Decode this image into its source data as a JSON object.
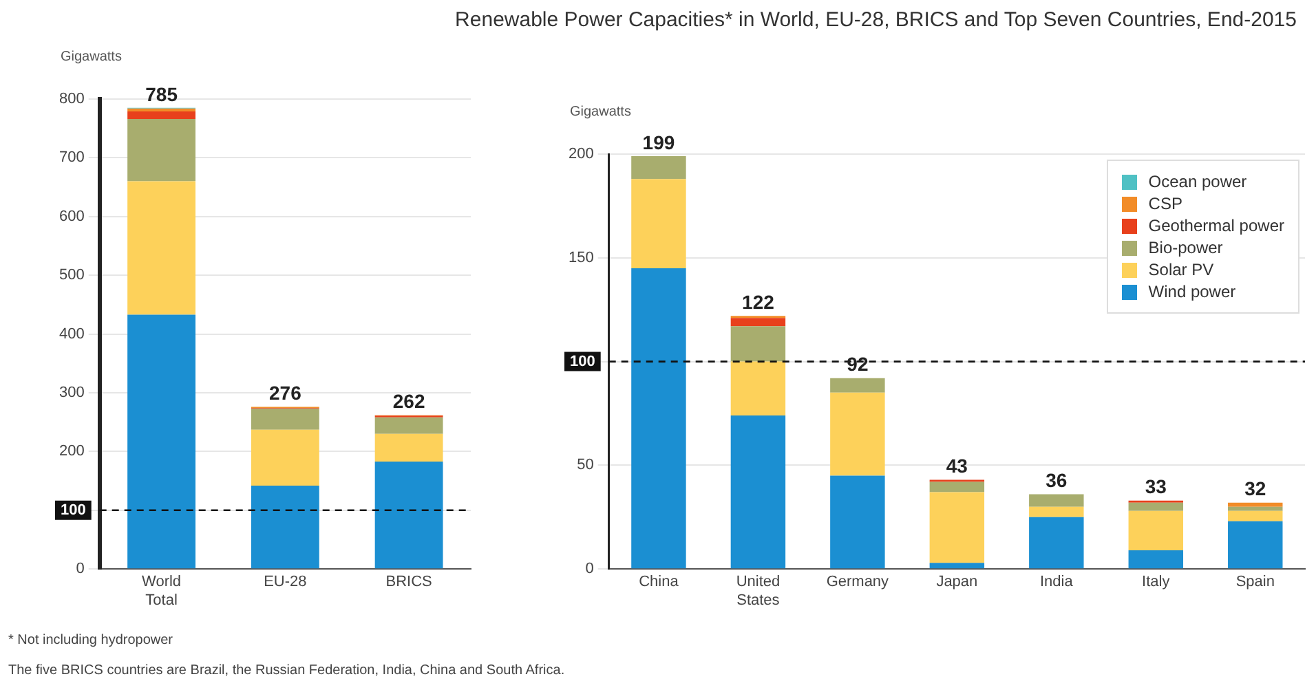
{
  "chart_data": [
    {
      "type": "bar",
      "title": "Renewable Power Capacities* in World, EU-28, BRICS and Top Seven Countries, End-2015",
      "ylabel": "Gigawatts",
      "categories": [
        "World Total",
        "EU-28",
        "BRICS"
      ],
      "stacked": true,
      "series": [
        {
          "color": "#1b8fd2",
          "values": [
            433,
            142,
            183
          ]
        },
        {
          "color": "#fdd15a",
          "values": [
            227,
            95,
            47
          ]
        },
        {
          "color": "#a8ad6e",
          "values": [
            106,
            36,
            28
          ]
        },
        {
          "color": "#e8401c",
          "values": [
            13,
            1,
            3
          ]
        },
        {
          "color": "#f28c28",
          "values": [
            5,
            2,
            1
          ]
        },
        {
          "color": "#4fc1c4",
          "values": [
            1,
            0,
            0
          ]
        }
      ],
      "totals": [
        "785",
        "276",
        "262"
      ],
      "ylim": [
        0,
        800
      ],
      "yticks": [
        0,
        100,
        200,
        300,
        400,
        500,
        600,
        700,
        800
      ],
      "grid": "y",
      "ref_lines": [
        {
          "axis": "y",
          "value": 100,
          "label": "100",
          "line_style": "dashed"
        }
      ],
      "annotations": [
        "* Not including hydropower",
        "The five BRICS countries are Brazil, the Russian Federation, India, China and South Africa."
      ]
    },
    {
      "type": "bar",
      "ylabel": "Gigawatts",
      "categories": [
        "China",
        "United States",
        "Germany",
        "Japan",
        "India",
        "Italy",
        "Spain"
      ],
      "stacked": true,
      "legend": "top right",
      "series": [
        {
          "name": "Wind power",
          "color": "#1b8fd2",
          "values": [
            145,
            74,
            45,
            3,
            25,
            9,
            23
          ]
        },
        {
          "name": "Solar PV",
          "color": "#fdd15a",
          "values": [
            43,
            26,
            40,
            34,
            5,
            19,
            5
          ]
        },
        {
          "name": "Bio-power",
          "color": "#a8ad6e",
          "values": [
            11,
            17,
            7,
            5,
            6,
            4,
            2
          ]
        },
        {
          "name": "Geothermal power",
          "color": "#e8401c",
          "values": [
            0,
            4,
            0,
            1,
            0,
            1,
            0
          ]
        },
        {
          "name": "CSP",
          "color": "#f28c28",
          "values": [
            0,
            1,
            0,
            0,
            0,
            0,
            2
          ]
        },
        {
          "name": "Ocean power",
          "color": "#4fc1c4",
          "values": [
            0,
            0,
            0,
            0,
            0,
            0,
            0
          ]
        }
      ],
      "totals": [
        "199",
        "122",
        "92",
        "43",
        "36",
        "33",
        "32"
      ],
      "ylim": [
        0,
        200
      ],
      "yticks": [
        0,
        50,
        100,
        150,
        200
      ],
      "grid": "y",
      "ref_lines": [
        {
          "axis": "y",
          "value": 100,
          "label": "100",
          "line_style": "dashed"
        }
      ]
    }
  ]
}
